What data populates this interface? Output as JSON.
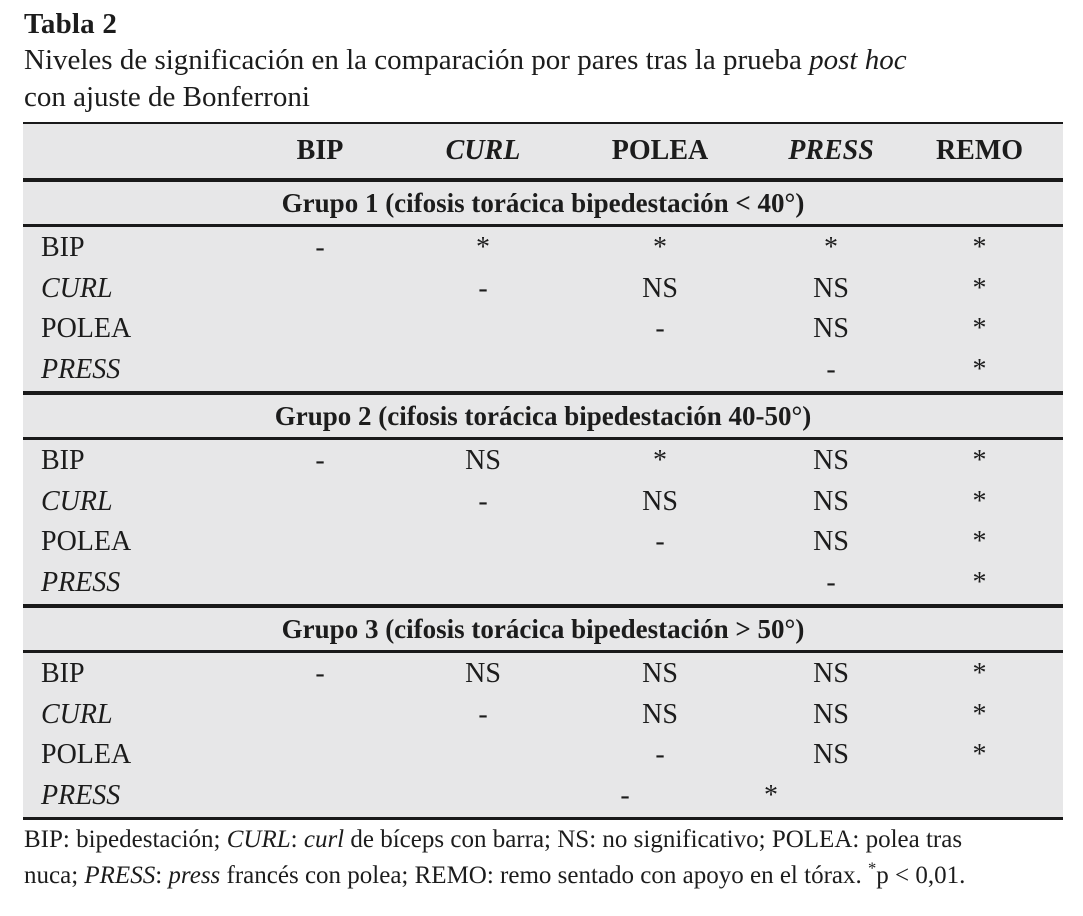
{
  "title": "Tabla 2",
  "subtitle_segments": [
    {
      "t": "Niveles de significación en la comparación por pares tras la prueba "
    },
    {
      "t": "post hoc",
      "i": true
    },
    {
      "br": true
    },
    {
      "t": "con ajuste de Bonferroni"
    }
  ],
  "table": {
    "columns": [
      {
        "label": "BIP",
        "italic": false
      },
      {
        "label": "CURL",
        "italic": true
      },
      {
        "label": "POLEA",
        "italic": false
      },
      {
        "label": "PRESS",
        "italic": true
      },
      {
        "label": "REMO",
        "italic": false
      }
    ],
    "groups": [
      {
        "title": "Grupo 1 (cifosis torácica bipedestación < 40°)",
        "rows": [
          {
            "label": "BIP",
            "italic": false,
            "values": [
              "-",
              "*",
              "*",
              "*",
              "*"
            ]
          },
          {
            "label": "CURL",
            "italic": true,
            "values": [
              "",
              "-",
              "NS",
              "NS",
              "*"
            ]
          },
          {
            "label": "POLEA",
            "italic": false,
            "values": [
              "",
              "",
              "-",
              "NS",
              "*"
            ]
          },
          {
            "label": "PRESS",
            "italic": true,
            "values": [
              "",
              "",
              "",
              "-",
              "*"
            ]
          }
        ]
      },
      {
        "title": "Grupo 2 (cifosis torácica bipedestación 40-50°)",
        "rows": [
          {
            "label": "BIP",
            "italic": false,
            "values": [
              "-",
              "NS",
              "*",
              "NS",
              "*"
            ]
          },
          {
            "label": "CURL",
            "italic": true,
            "values": [
              "",
              "-",
              "NS",
              "NS",
              "*"
            ]
          },
          {
            "label": "POLEA",
            "italic": false,
            "values": [
              "",
              "",
              "-",
              "NS",
              "*"
            ]
          },
          {
            "label": "PRESS",
            "italic": true,
            "values": [
              "",
              "",
              "",
              "-",
              "*"
            ]
          }
        ]
      },
      {
        "title": "Grupo 3 (cifosis torácica bipedestación > 50°)",
        "rows": [
          {
            "label": "BIP",
            "italic": false,
            "values": [
              "-",
              "NS",
              "NS",
              "NS",
              "*"
            ]
          },
          {
            "label": "CURL",
            "italic": true,
            "values": [
              "",
              "-",
              "NS",
              "NS",
              "*"
            ]
          },
          {
            "label": "POLEA",
            "italic": false,
            "values": [
              "",
              "",
              "-",
              "NS",
              "*"
            ]
          },
          {
            "label": "PRESS",
            "italic": true,
            "values": [
              "",
              "",
              "-",
              "*",
              ""
            ],
            "offset_quirk": true
          }
        ]
      }
    ]
  },
  "footnote_segments": [
    {
      "t": "BIP: bipedestación; "
    },
    {
      "t": "CURL",
      "i": true
    },
    {
      "t": ": "
    },
    {
      "t": "curl",
      "i": true
    },
    {
      "t": " de bíceps con barra; NS: no significativo; POLEA: polea tras"
    },
    {
      "br": true
    },
    {
      "t": "nuca; "
    },
    {
      "t": "PRESS",
      "i": true
    },
    {
      "t": ": "
    },
    {
      "t": "press",
      "i": true
    },
    {
      "t": " francés con polea; REMO: remo sentado con apoyo en el tórax. "
    },
    {
      "t": "*",
      "sup": true
    },
    {
      "t": "p < 0,01."
    }
  ],
  "colors": {
    "table_background": "#e7e7e8",
    "text": "#1c1c1c",
    "rule": "#1a1a1a",
    "page_background": "#ffffff"
  }
}
